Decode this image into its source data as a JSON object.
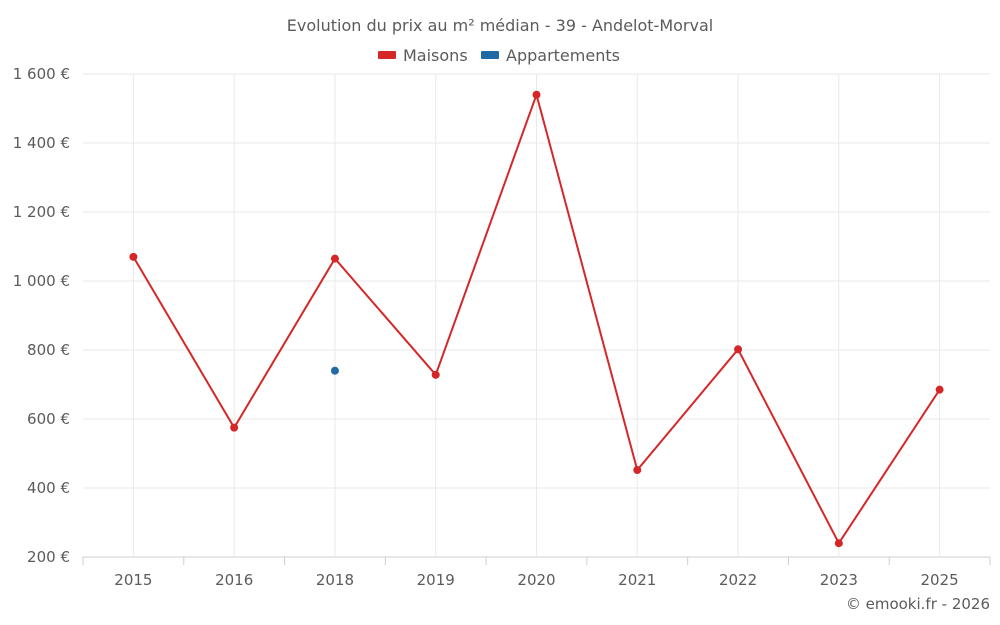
{
  "chart_data": {
    "type": "line",
    "title": "Evolution du prix au m² médian - 39 - Andelot-Morval",
    "categories": [
      "2015",
      "2016",
      "2018",
      "2019",
      "2020",
      "2021",
      "2022",
      "2023",
      "2025"
    ],
    "series": [
      {
        "name": "Maisons",
        "color": "#d62728",
        "values": [
          1070,
          575,
          1065,
          728,
          1540,
          452,
          802,
          240,
          685
        ]
      },
      {
        "name": "Appartements",
        "color": "#1f6aa5",
        "values": [
          null,
          null,
          740,
          null,
          null,
          null,
          null,
          null,
          null
        ]
      }
    ],
    "ylim": [
      200,
      1600
    ],
    "yticks": [
      200,
      400,
      600,
      800,
      1000,
      1200,
      1400,
      1600
    ],
    "ytick_labels": [
      "200 €",
      "400 €",
      "600 €",
      "800 €",
      "1 000 €",
      "1 200 €",
      "1 400 €",
      "1 600 €"
    ],
    "xlabel": "",
    "ylabel": "",
    "grid": true,
    "legend_position": "top-center"
  },
  "footer": {
    "credit": "© emooki.fr - 2026"
  },
  "colors": {
    "grid": "#e9e9e9",
    "axis": "#cfcfcf"
  }
}
